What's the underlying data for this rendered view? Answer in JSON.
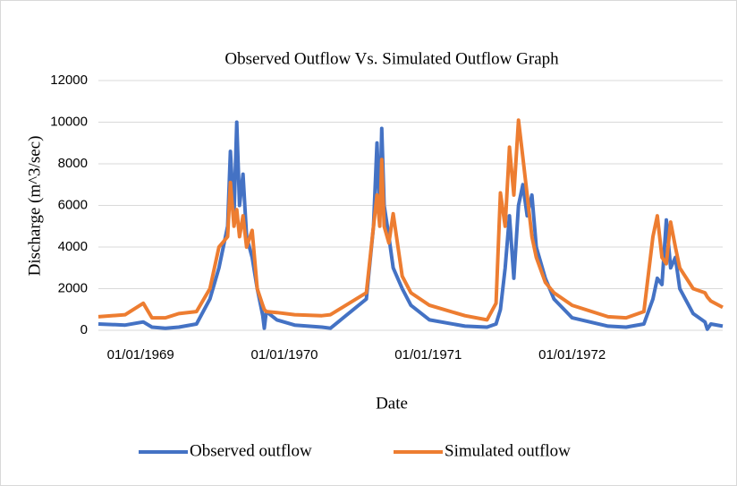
{
  "chart_data": {
    "type": "line",
    "title": "Observed Outflow Vs. Simulated Outflow Graph",
    "xlabel": "Date",
    "ylabel": "Discharge (m^3/sec)",
    "x": [
      "16/09/1968",
      "23/11/1968",
      "08/01/1969",
      "30/01/1969",
      "05/03/1969",
      "08/04/1969",
      "23/05/1969",
      "26/06/1969",
      "19/07/1969",
      "10/08/1969",
      "17/08/1969",
      "26/08/1969",
      "02/09/1969",
      "09/09/1969",
      "18/09/1969",
      "27/09/1969",
      "11/10/1969",
      "24/10/1969",
      "07/11/1969",
      "11/11/1969",
      "16/11/1969",
      "13/12/1969",
      "27/01/1970",
      "06/04/1970",
      "28/04/1970",
      "28/07/1970",
      "15/08/1970",
      "24/08/1970",
      "31/08/1970",
      "05/09/1970",
      "11/09/1970",
      "23/09/1970",
      "04/10/1970",
      "27/10/1970",
      "18/11/1970",
      "04/01/1971",
      "04/04/1971",
      "30/05/1971",
      "22/06/1971",
      "03/07/1971",
      "15/07/1971",
      "26/07/1971",
      "06/08/1971",
      "18/08/1971",
      "29/08/1971",
      "09/09/1971",
      "21/09/1971",
      "02/10/1971",
      "25/10/1971",
      "16/11/1971",
      "01/01/1972",
      "01/04/1972",
      "17/05/1972",
      "01/07/1972",
      "24/07/1972",
      "04/08/1972",
      "16/08/1972",
      "27/08/1972",
      "07/09/1972",
      "19/09/1972",
      "30/09/1972",
      "03/11/1972",
      "03/12/1972",
      "09/12/1972",
      "18/12/1972",
      "17/01/1973"
    ],
    "series": [
      {
        "name": "Observed outflow",
        "color": "#4472c4",
        "values": [
          300,
          250,
          400,
          150,
          100,
          150,
          300,
          1500,
          3000,
          5000,
          8600,
          5500,
          10000,
          6000,
          7500,
          4500,
          3500,
          2000,
          700,
          100,
          900,
          500,
          250,
          150,
          100,
          1500,
          5000,
          9000,
          5500,
          9700,
          6000,
          4500,
          3000,
          2000,
          1200,
          500,
          200,
          150,
          300,
          1000,
          3000,
          5500,
          2500,
          6000,
          7000,
          5500,
          6500,
          4000,
          2500,
          1500,
          600,
          200,
          150,
          300,
          1500,
          2500,
          2200,
          5300,
          3000,
          3500,
          2000,
          800,
          400,
          50,
          300,
          200
        ]
      },
      {
        "name": "Simulated outflow",
        "color": "#ed7d31",
        "values": [
          650,
          750,
          1300,
          600,
          600,
          800,
          900,
          2000,
          4000,
          4500,
          7100,
          5000,
          5800,
          4500,
          5500,
          4000,
          4800,
          2000,
          1200,
          1000,
          900,
          850,
          750,
          700,
          750,
          1800,
          5000,
          6500,
          5000,
          8200,
          5000,
          4200,
          5600,
          2600,
          1800,
          1200,
          700,
          500,
          1300,
          6600,
          5000,
          8800,
          6500,
          10100,
          8300,
          6500,
          4500,
          3500,
          2300,
          1800,
          1200,
          650,
          600,
          900,
          4500,
          5500,
          3500,
          3200,
          5200,
          4000,
          3000,
          2000,
          1800,
          1600,
          1400,
          1100
        ]
      }
    ],
    "xlim": [
      "16/09/1968",
      "17/01/1973"
    ],
    "xticks": [
      "01/01/1969",
      "01/01/1970",
      "01/01/1971",
      "01/01/1972"
    ],
    "ylim": [
      0,
      12000
    ],
    "yticks": [
      0,
      2000,
      4000,
      6000,
      8000,
      10000,
      12000
    ],
    "grid": true,
    "legend": "bottom"
  }
}
